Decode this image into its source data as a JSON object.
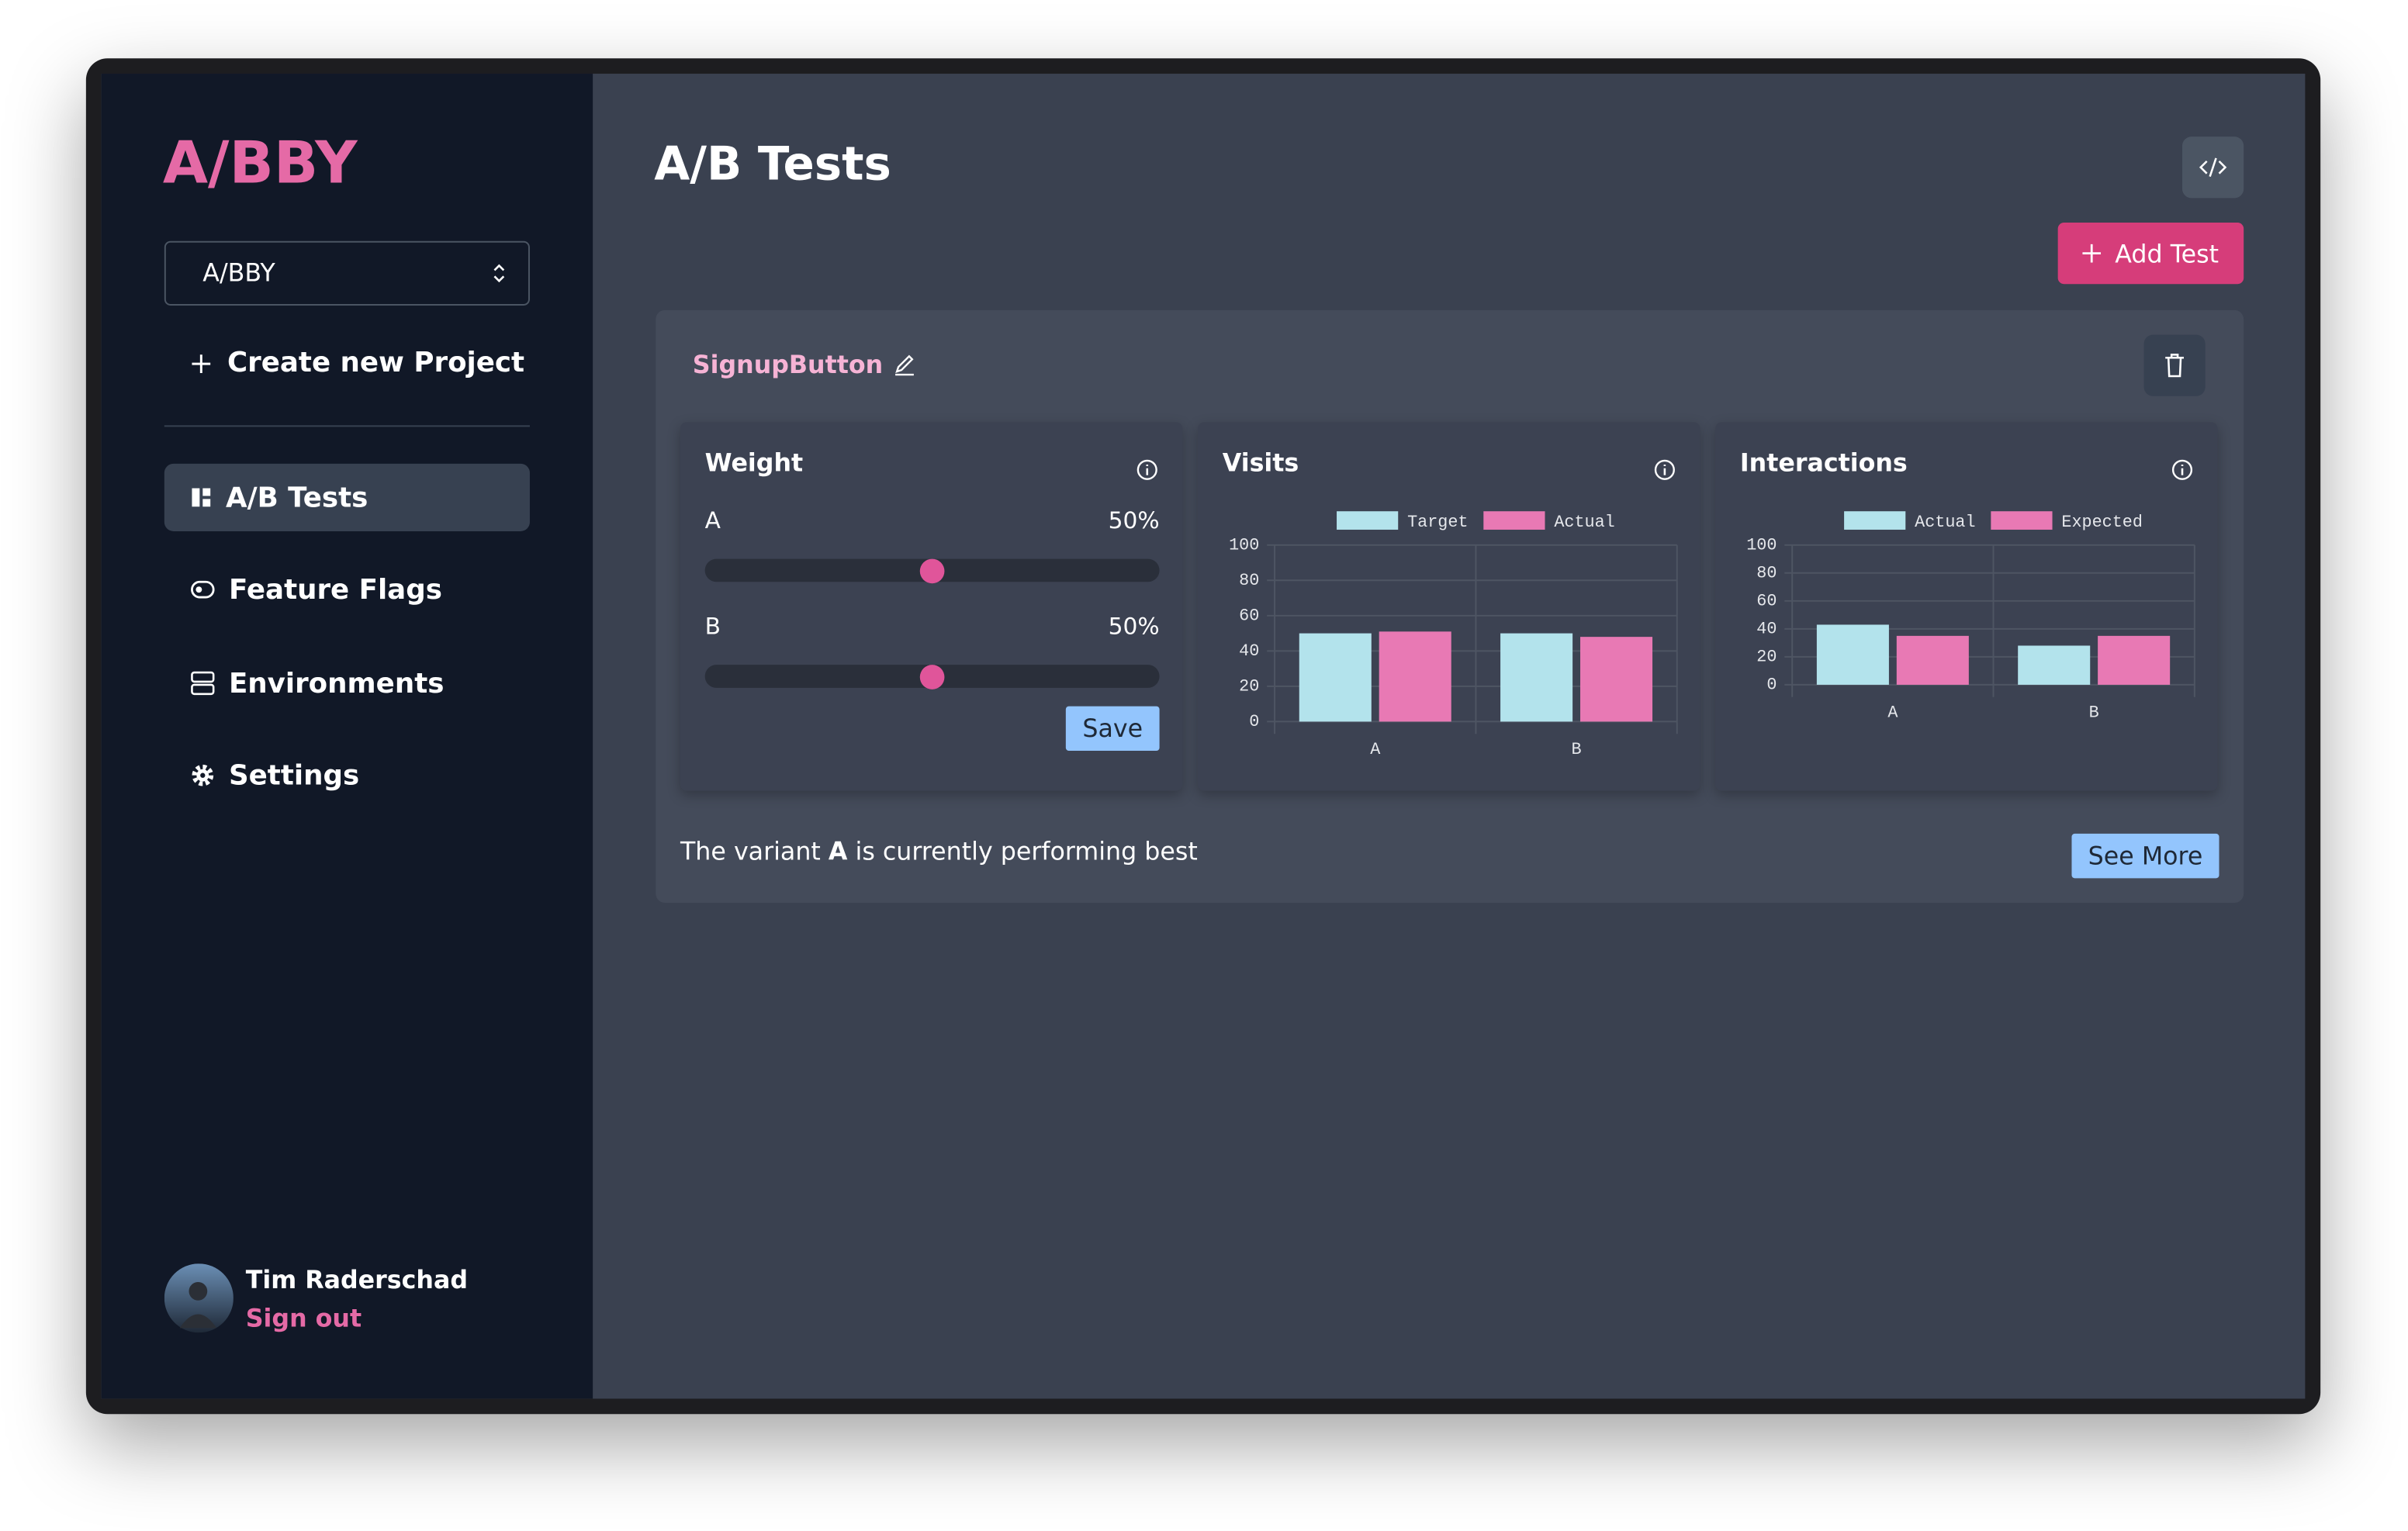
{
  "sidebar": {
    "logo": "A/BBY",
    "project_select": "A/BBY",
    "create_project": "Create new Project",
    "nav": [
      "A/B Tests",
      "Feature Flags",
      "Environments",
      "Settings"
    ],
    "user": {
      "name": "Tim Raderschad",
      "sign_out": "Sign out"
    }
  },
  "header": {
    "title": "A/B Tests",
    "add_button": "Add Test"
  },
  "test": {
    "name": "SignupButton",
    "weight": {
      "title": "Weight",
      "range": [
        0,
        100
      ],
      "variants": [
        {
          "name": "A",
          "value": 50,
          "label": "50%"
        },
        {
          "name": "B",
          "value": 50,
          "label": "50%"
        }
      ],
      "save": "Save"
    },
    "visits": {
      "type": "bar",
      "title": "Visits",
      "categories": [
        "A",
        "B"
      ],
      "series": [
        {
          "name": "Target",
          "color": "#b3e3ec",
          "values": [
            50,
            50
          ]
        },
        {
          "name": "Actual",
          "color": "#e879b4",
          "values": [
            51,
            48
          ]
        }
      ],
      "ylim": [
        0,
        100
      ],
      "yticks": [
        0,
        20,
        40,
        60,
        80,
        100
      ],
      "grid": true
    },
    "interactions": {
      "type": "bar",
      "title": "Interactions",
      "categories": [
        "A",
        "B"
      ],
      "series": [
        {
          "name": "Actual",
          "color": "#b3e3ec",
          "values": [
            43,
            28
          ]
        },
        {
          "name": "Expected",
          "color": "#e879b4",
          "values": [
            35,
            35
          ]
        }
      ],
      "ylim": [
        0,
        100
      ],
      "yticks": [
        0,
        20,
        40,
        60,
        80,
        100
      ],
      "grid": true
    },
    "summary": [
      "The variant",
      "A",
      "is currently performing best"
    ],
    "see_more": "See More"
  }
}
